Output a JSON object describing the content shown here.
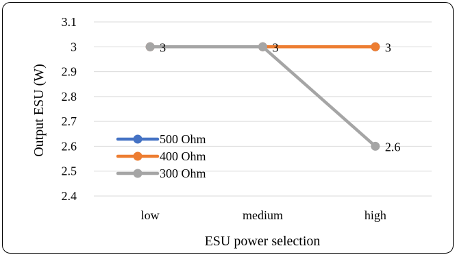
{
  "chart_data": {
    "type": "line",
    "title": "",
    "xlabel": "ESU power selection",
    "ylabel": "Output ESU (W)",
    "categories": [
      "low",
      "medium",
      "high"
    ],
    "ylim": [
      2.4,
      3.1
    ],
    "yticks": [
      "3.1",
      "3",
      "2.9",
      "2.8",
      "2.7",
      "2.6",
      "2.5",
      "2.4"
    ],
    "ytick_values": [
      3.1,
      3.0,
      2.9,
      2.8,
      2.7,
      2.6,
      2.5,
      2.4
    ],
    "grid": true,
    "legend_position": "bottom-left",
    "series": [
      {
        "name": "500 Ohm",
        "color": "#4472C4",
        "values": [
          3,
          3,
          3
        ],
        "labels": []
      },
      {
        "name": "400 Ohm",
        "color": "#ED7D31",
        "values": [
          3,
          3,
          3
        ],
        "labels": [
          "3",
          "3",
          "3"
        ]
      },
      {
        "name": "300 Ohm",
        "color": "#A5A5A5",
        "values": [
          3,
          3,
          2.6
        ],
        "labels": [
          "",
          "",
          "2.6"
        ]
      }
    ]
  }
}
